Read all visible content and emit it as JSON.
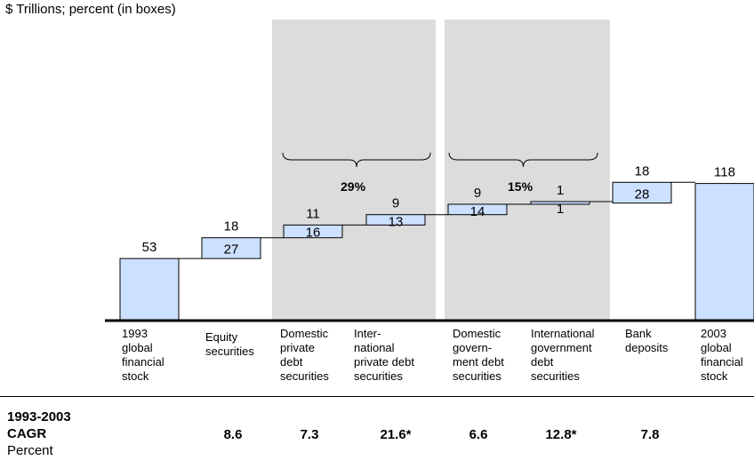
{
  "subtitle": "$ Trillions; percent (in boxes)",
  "chart_data": {
    "type": "waterfall",
    "title": "",
    "unit_note": "$ Trillions; percent (in boxes)",
    "bars": [
      {
        "category": "1993\nglobal\nfinancial\nstock",
        "kind": "total",
        "value": 53,
        "label": "53",
        "box_label": ""
      },
      {
        "category": "Equity\nsecurities",
        "kind": "delta",
        "value": 18,
        "label": "18",
        "box_label": "27"
      },
      {
        "category": "Domestic\nprivate\ndebt\nsecurities",
        "kind": "delta",
        "value": 11,
        "label": "11",
        "box_label": "16"
      },
      {
        "category": "Inter-\nnational\nprivate debt\nsecurities",
        "kind": "delta",
        "value": 9,
        "label": "9",
        "box_label": "13"
      },
      {
        "category": "Domestic\ngovern-\nment debt\nsecurities",
        "kind": "delta",
        "value": 9,
        "label": "9",
        "box_label": "14"
      },
      {
        "category": "International\ngovernment\ndebt\nsecurities",
        "kind": "delta",
        "value": 1,
        "label": "1",
        "box_label": "1"
      },
      {
        "category": "Bank\ndeposits",
        "kind": "delta",
        "value": 18,
        "label": "18",
        "box_label": "28"
      },
      {
        "category": "2003\nglobal\nfinancial\nstock",
        "kind": "total",
        "value": 118,
        "label": "118",
        "box_label": ""
      }
    ],
    "group_brackets": [
      {
        "label": "29%",
        "bars": [
          2,
          3
        ]
      },
      {
        "label": "15%",
        "bars": [
          4,
          5
        ]
      }
    ],
    "cagr": {
      "title": "1993-2003",
      "subtitle": "CAGR",
      "unit": "Percent",
      "values": [
        "",
        "8.6",
        "7.3",
        "21.6*",
        "6.6",
        "12.8*",
        "7.8",
        ""
      ]
    },
    "colors": {
      "bar_fill": "#cce0ff",
      "bar_stroke": "#000000",
      "band": "#dcdcdc"
    }
  }
}
